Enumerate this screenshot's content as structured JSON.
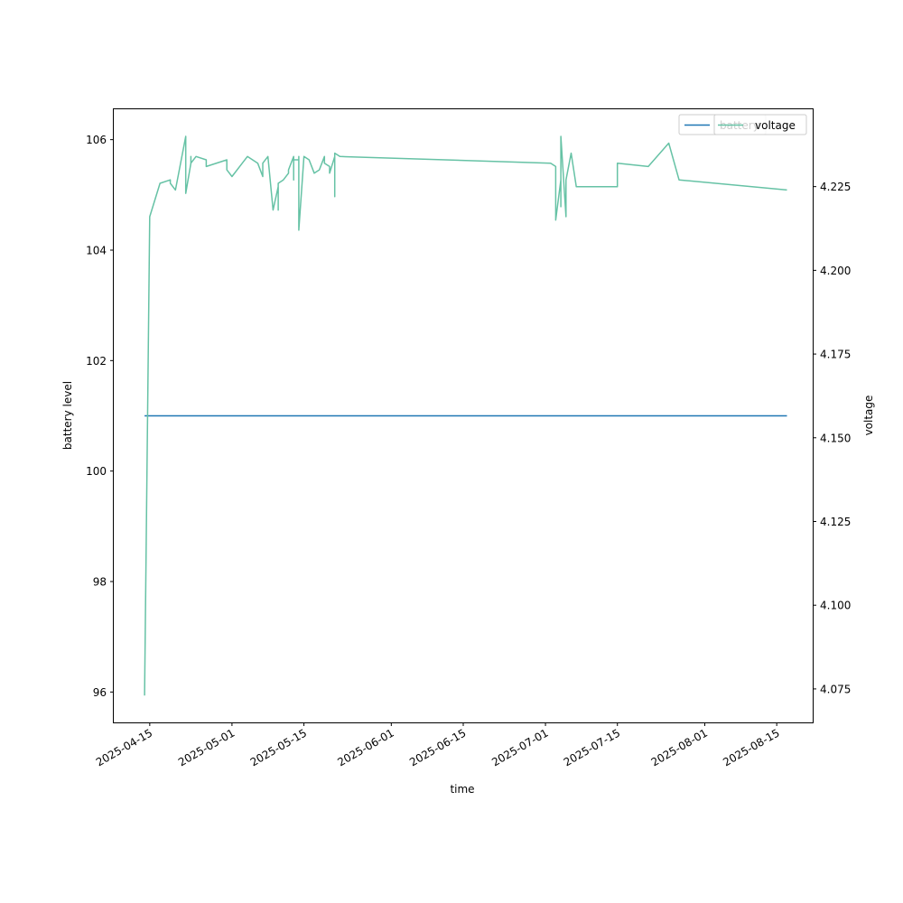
{
  "chart_data": {
    "type": "line",
    "xlabel": "time",
    "ylabel_left": "battery level",
    "ylabel_right": "voltage",
    "x_ticks": [
      "2025-04-15",
      "2025-05-01",
      "2025-05-15",
      "2025-06-01",
      "2025-06-15",
      "2025-07-01",
      "2025-07-15",
      "2025-08-01",
      "2025-08-15"
    ],
    "y_left_ticks": [
      "96",
      "98",
      "100",
      "102",
      "104",
      "106"
    ],
    "y_right_ticks": [
      "4.075",
      "4.100",
      "4.125",
      "4.150",
      "4.175",
      "4.200",
      "4.225"
    ],
    "xlim": [
      "2025-04-08",
      "2025-08-22"
    ],
    "ylim_left": [
      95.45,
      106.55
    ],
    "ylim_right": [
      4.065,
      4.2481
    ],
    "grid": false,
    "legend_placement": "top-right",
    "series": [
      {
        "name": "battery",
        "axis": "left",
        "color": "#1f77b4",
        "x": [
          "2025-04-14",
          "2025-08-17"
        ],
        "y": [
          101,
          101
        ]
      },
      {
        "name": "voltage",
        "axis": "right",
        "color": "#66c2a5",
        "x": [
          "2025-04-14",
          "2025-04-15",
          "2025-04-17",
          "2025-04-19",
          "2025-04-19",
          "2025-04-20",
          "2025-04-22",
          "2025-04-22",
          "2025-04-22",
          "2025-04-23",
          "2025-04-23",
          "2025-04-23",
          "2025-04-24",
          "2025-04-26",
          "2025-04-26",
          "2025-04-30",
          "2025-04-30",
          "2025-05-01",
          "2025-05-03",
          "2025-05-04",
          "2025-05-05",
          "2025-05-06",
          "2025-05-07",
          "2025-05-07",
          "2025-05-07",
          "2025-05-08",
          "2025-05-09",
          "2025-05-10",
          "2025-05-10",
          "2025-05-10",
          "2025-05-11",
          "2025-05-12",
          "2025-05-12",
          "2025-05-13",
          "2025-05-13",
          "2025-05-13",
          "2025-05-14",
          "2025-05-14",
          "2025-05-14",
          "2025-05-14",
          "2025-05-15",
          "2025-05-16",
          "2025-05-17",
          "2025-05-18",
          "2025-05-19",
          "2025-05-19",
          "2025-05-20",
          "2025-05-20",
          "2025-05-21",
          "2025-05-21",
          "2025-05-21",
          "2025-05-21",
          "2025-05-22",
          "2025-07-02",
          "2025-07-03",
          "2025-07-03",
          "2025-07-04",
          "2025-07-04",
          "2025-07-04",
          "2025-07-04",
          "2025-07-05",
          "2025-07-05",
          "2025-07-06",
          "2025-07-07",
          "2025-07-08",
          "2025-07-15",
          "2025-07-15",
          "2025-07-21",
          "2025-07-25",
          "2025-07-27",
          "2025-08-17"
        ],
        "y": [
          4.073,
          4.216,
          4.226,
          4.227,
          4.226,
          4.224,
          4.24,
          4.234,
          4.223,
          4.232,
          4.234,
          4.232,
          4.234,
          4.233,
          4.231,
          4.233,
          4.23,
          4.228,
          4.232,
          4.234,
          4.233,
          4.232,
          4.228,
          4.23,
          4.232,
          4.234,
          4.218,
          4.225,
          4.218,
          4.226,
          4.227,
          4.229,
          4.23,
          4.234,
          4.227,
          4.233,
          4.233,
          4.231,
          4.234,
          4.212,
          4.234,
          4.233,
          4.229,
          4.23,
          4.234,
          4.232,
          4.231,
          4.229,
          4.234,
          4.222,
          4.23,
          4.235,
          4.234,
          4.232,
          4.231,
          4.215,
          4.227,
          4.219,
          4.227,
          4.24,
          4.216,
          4.227,
          4.235,
          4.225,
          4.225,
          4.225,
          4.232,
          4.231,
          4.238,
          4.227,
          4.224
        ]
      }
    ],
    "legend": {
      "under": {
        "label": "battery",
        "color": "#1f77b4"
      },
      "over": {
        "label": "voltage",
        "color": "#66c2a5"
      }
    }
  }
}
